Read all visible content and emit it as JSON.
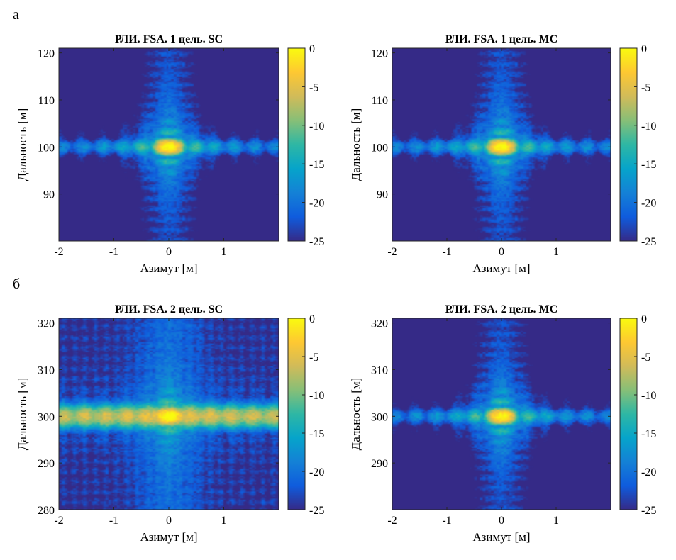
{
  "figure": {
    "label_a": "а",
    "label_b": "б"
  },
  "colorbar": {
    "ticks": [
      0,
      -5,
      -10,
      -15,
      -20,
      -25
    ],
    "range": [
      -25,
      0
    ],
    "colormap_stops": [
      "#352a87",
      "#0f5cdd",
      "#1481d6",
      "#06a4ca",
      "#2eb7a4",
      "#87bf77",
      "#d1bb59",
      "#fec832",
      "#f9fb0e"
    ]
  },
  "chart_data": [
    {
      "type": "heatmap",
      "title": "РЛИ. FSA. 1 цель. SC",
      "xlabel": "Азимут [м]",
      "ylabel": "Дальность [м]",
      "xlim": [
        -2,
        2
      ],
      "ylim": [
        80,
        121
      ],
      "xticks": [
        -2,
        -1,
        0,
        1
      ],
      "yticks": [
        90,
        100,
        110,
        120
      ],
      "targets": [
        {
          "x": 0,
          "y": 100
        }
      ],
      "mode": "SC",
      "clim": [
        -25,
        0
      ]
    },
    {
      "type": "heatmap",
      "title": "РЛИ. FSA. 1 цель. MC",
      "xlabel": "Азимут [м]",
      "ylabel": "Дальность [м]",
      "xlim": [
        -2,
        2
      ],
      "ylim": [
        80,
        121
      ],
      "xticks": [
        -2,
        -1,
        0,
        1
      ],
      "yticks": [
        90,
        100,
        110,
        120
      ],
      "targets": [
        {
          "x": 0,
          "y": 100
        }
      ],
      "mode": "MC",
      "clim": [
        -25,
        0
      ]
    },
    {
      "type": "heatmap",
      "title": "РЛИ. FSA. 2 цель. SC",
      "xlabel": "Азимут [м]",
      "ylabel": "Дальность [м]",
      "xlim": [
        -2,
        2
      ],
      "ylim": [
        280,
        321
      ],
      "xticks": [
        -2,
        -1,
        0,
        1
      ],
      "yticks": [
        280,
        290,
        300,
        310,
        320
      ],
      "targets": [
        {
          "x": 0,
          "y": 300
        }
      ],
      "mode": "SC",
      "clim": [
        -25,
        0
      ]
    },
    {
      "type": "heatmap",
      "title": "РЛИ. FSA. 2 цель. MC",
      "xlabel": "Азимут [м]",
      "ylabel": "Дальность [м]",
      "xlim": [
        -2,
        2
      ],
      "ylim": [
        280,
        321
      ],
      "xticks": [
        -2,
        -1,
        0,
        1
      ],
      "yticks": [
        290,
        300,
        310,
        320
      ],
      "targets": [
        {
          "x": 0,
          "y": 300
        }
      ],
      "mode": "MC",
      "clim": [
        -25,
        0
      ]
    }
  ]
}
